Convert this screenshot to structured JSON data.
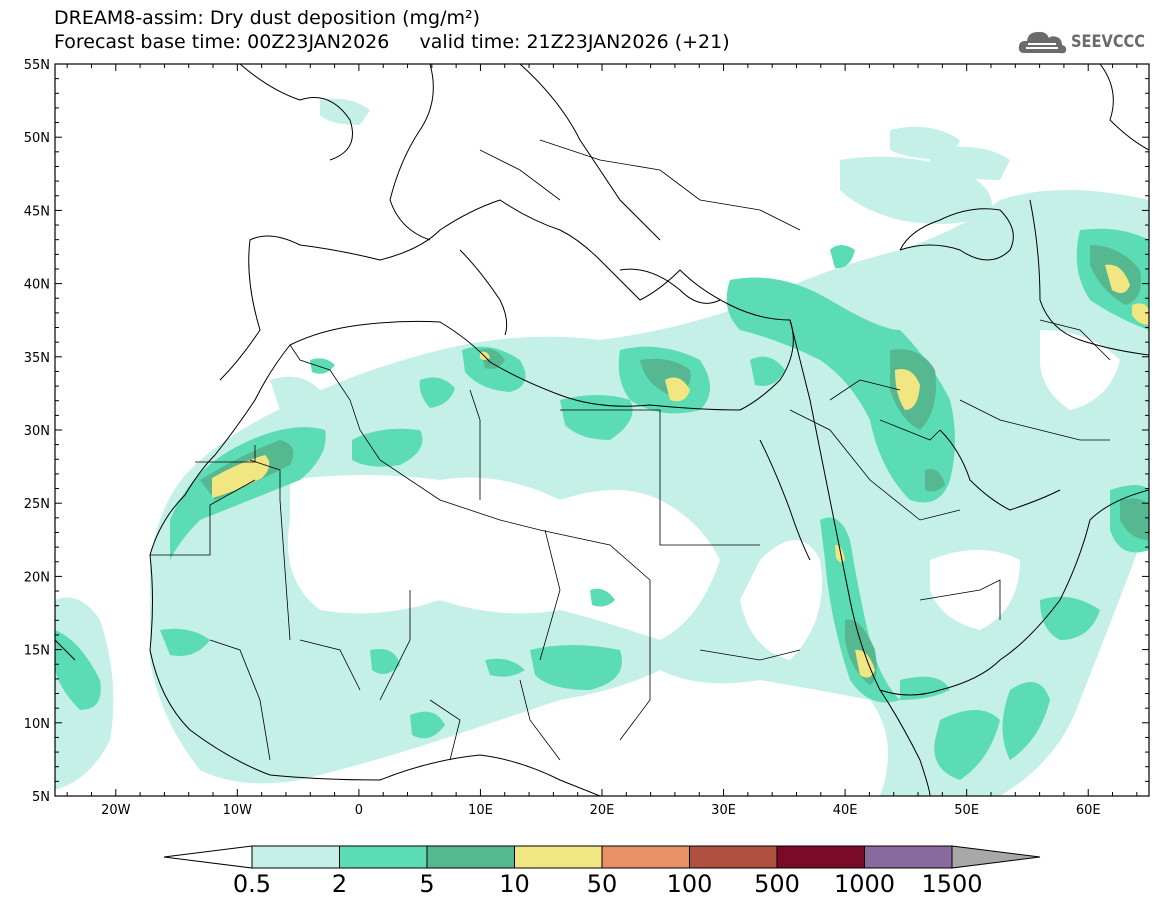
{
  "header": {
    "title_line1": "DREAM8-assim: Dry dust deposition (mg/m²)",
    "title_line2": "Forecast base time: 00Z23JAN2026     valid time: 21Z23JAN2026 (+21)"
  },
  "logo": {
    "text": "SEEVCCC",
    "icon": "cloud-logo-icon"
  },
  "map": {
    "lat_labels": [
      "55N",
      "50N",
      "45N",
      "40N",
      "35N",
      "30N",
      "25N",
      "20N",
      "15N",
      "10N",
      "5N"
    ],
    "lon_labels": [
      "20W",
      "10W",
      "0",
      "10E",
      "20E",
      "30E",
      "40E",
      "50E",
      "60E"
    ],
    "extent": {
      "lon": [
        -25,
        65
      ],
      "lat": [
        5,
        55
      ]
    }
  },
  "colorbar": {
    "colors": [
      "#c4f0e8",
      "#5cdcb4",
      "#56b890",
      "#f2e682",
      "#e89068",
      "#b05040",
      "#7a0a28",
      "#8a6a9e",
      "#a8a8a8"
    ],
    "labels": [
      "0.5",
      "2",
      "5",
      "10",
      "50",
      "100",
      "500",
      "1000",
      "1500"
    ]
  }
}
